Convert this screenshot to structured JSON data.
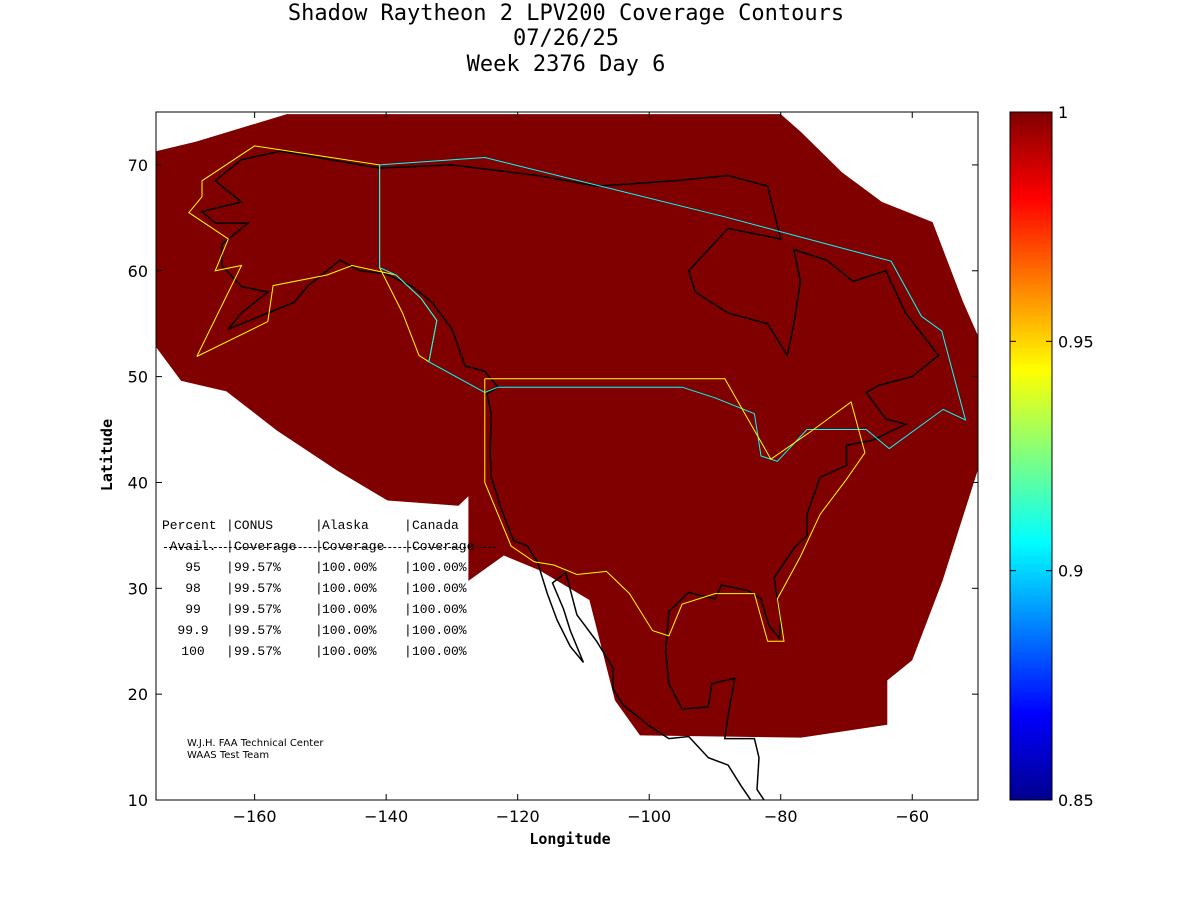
{
  "title": {
    "line1": "Shadow Raytheon 2 LPV200 Coverage Contours",
    "line2": "07/26/25",
    "line3": "Week 2376 Day 6"
  },
  "chart_data": {
    "type": "heatmap",
    "xlabel": "Longitude",
    "ylabel": "Latitude",
    "xlim": [
      -175,
      -50
    ],
    "ylim": [
      10,
      75
    ],
    "xticks": [
      -160,
      -140,
      -120,
      -100,
      -80,
      -60
    ],
    "yticks": [
      10,
      20,
      30,
      40,
      50,
      60,
      70
    ],
    "colorbar": {
      "range": [
        0.85,
        1
      ],
      "ticks": [
        "1",
        "0.95",
        "0.9",
        "0.85"
      ],
      "colormap": "jet"
    },
    "coverage_value": 1,
    "coverage_color": "#800000",
    "coverage_region": [
      [
        -175.6,
        71.2
      ],
      [
        -175.6,
        53.3
      ],
      [
        -171.2,
        49.6
      ],
      [
        -164.3,
        48.6
      ],
      [
        -156.6,
        44.9
      ],
      [
        -147.4,
        41.1
      ],
      [
        -139.8,
        38.3
      ],
      [
        -129.0,
        37.8
      ],
      [
        -127.5,
        38.7
      ],
      [
        -127.5,
        30.7
      ],
      [
        -122.1,
        33.1
      ],
      [
        -116.7,
        31.7
      ],
      [
        -109.1,
        28.9
      ],
      [
        -105.2,
        19.4
      ],
      [
        -101.4,
        16.1
      ],
      [
        -76.9,
        15.9
      ],
      [
        -63.8,
        17.1
      ],
      [
        -63.8,
        21.3
      ],
      [
        -60.0,
        23.2
      ],
      [
        -55.4,
        30.7
      ],
      [
        -49.6,
        42.0
      ],
      [
        -49.6,
        53.3
      ],
      [
        -52.3,
        57.1
      ],
      [
        -56.9,
        64.6
      ],
      [
        -64.6,
        66.5
      ],
      [
        -70.7,
        69.3
      ],
      [
        -76.9,
        73.1
      ],
      [
        -80.0,
        74.8
      ],
      [
        -155.1,
        74.8
      ],
      [
        -168.9,
        72.2
      ]
    ],
    "boundaries": {
      "alaska": {
        "color": "#ffff00",
        "points": [
          [
            -168.8,
            51.9
          ],
          [
            -158.0,
            55.2
          ],
          [
            -157.2,
            58.6
          ],
          [
            -149.0,
            59.6
          ],
          [
            -145.2,
            60.5
          ],
          [
            -138.5,
            59.6
          ],
          [
            -134.7,
            57.4
          ],
          [
            -132.3,
            55.3
          ],
          [
            -133.5,
            51.4
          ],
          [
            -135.0,
            52.0
          ],
          [
            -137.5,
            56.0
          ],
          [
            -141.0,
            60.3
          ],
          [
            -141.0,
            70.0
          ],
          [
            -160.0,
            71.8
          ],
          [
            -168.0,
            68.5
          ],
          [
            -168.0,
            67.0
          ],
          [
            -170.0,
            65.5
          ],
          [
            -164.0,
            63.0
          ],
          [
            -166.0,
            60.0
          ],
          [
            -162.0,
            60.5
          ],
          [
            -168.8,
            51.9
          ]
        ]
      },
      "canada": {
        "color": "#00ffff",
        "points": [
          [
            -141.0,
            70.0
          ],
          [
            -125.0,
            70.7
          ],
          [
            -88.5,
            65.1
          ],
          [
            -63.2,
            60.9
          ],
          [
            -58.6,
            55.7
          ],
          [
            -55.5,
            54.3
          ],
          [
            -51.9,
            45.9
          ],
          [
            -55.3,
            46.9
          ],
          [
            -63.5,
            43.2
          ],
          [
            -67.0,
            45.0
          ],
          [
            -72.0,
            45.0
          ],
          [
            -76.0,
            45.0
          ],
          [
            -80.5,
            42.0
          ],
          [
            -83.0,
            42.5
          ],
          [
            -84.0,
            46.5
          ],
          [
            -90.0,
            48.0
          ],
          [
            -95.0,
            49.0
          ],
          [
            -123.0,
            49.0
          ],
          [
            -125.0,
            48.5
          ],
          [
            -133.5,
            51.4
          ],
          [
            -132.3,
            55.3
          ],
          [
            -134.7,
            57.4
          ],
          [
            -138.5,
            59.6
          ],
          [
            -141.0,
            60.3
          ],
          [
            -141.0,
            70.0
          ]
        ]
      },
      "conus": {
        "color": "#ffff00",
        "points": [
          [
            -125.0,
            49.8
          ],
          [
            -88.5,
            49.8
          ],
          [
            -81.5,
            42.2
          ],
          [
            -75.0,
            45.0
          ],
          [
            -69.3,
            47.6
          ],
          [
            -67.2,
            42.8
          ],
          [
            -70.0,
            40.3
          ],
          [
            -74.0,
            37.0
          ],
          [
            -77.0,
            33.0
          ],
          [
            -80.5,
            29.0
          ],
          [
            -79.5,
            25.0
          ],
          [
            -82.0,
            25.0
          ],
          [
            -84.0,
            29.5
          ],
          [
            -90.0,
            29.5
          ],
          [
            -95.0,
            28.5
          ],
          [
            -97.0,
            25.5
          ],
          [
            -99.5,
            26.0
          ],
          [
            -103.0,
            29.5
          ],
          [
            -106.5,
            31.6
          ],
          [
            -111.0,
            31.3
          ],
          [
            -114.5,
            32.2
          ],
          [
            -117.5,
            32.5
          ],
          [
            -121.0,
            34.0
          ],
          [
            -125.0,
            40.0
          ],
          [
            -125.0,
            49.8
          ]
        ]
      }
    },
    "coastline": [
      [
        -166,
        68.5
      ],
      [
        -162,
        70.5
      ],
      [
        -156,
        71.3
      ],
      [
        -141,
        69.7
      ],
      [
        -130,
        70
      ],
      [
        -117,
        69
      ],
      [
        -108,
        68
      ],
      [
        -96,
        68.5
      ],
      [
        -88,
        69
      ],
      [
        -82,
        68
      ],
      [
        -80,
        63
      ],
      [
        -88,
        64
      ],
      [
        -94,
        60
      ],
      [
        -93,
        58
      ],
      [
        -88,
        56
      ],
      [
        -82,
        55
      ],
      [
        -79,
        52
      ],
      [
        -78,
        55
      ],
      [
        -77,
        59
      ],
      [
        -78,
        62
      ],
      [
        -73,
        61
      ],
      [
        -69,
        59
      ],
      [
        -64,
        60
      ],
      [
        -61,
        56
      ],
      [
        -56,
        52
      ],
      [
        -60,
        50
      ],
      [
        -65,
        49.2
      ],
      [
        -67,
        48.5
      ],
      [
        -64,
        46
      ],
      [
        -61,
        45.5
      ],
      [
        -66,
        44
      ],
      [
        -70,
        43.5
      ],
      [
        -70,
        41.6
      ],
      [
        -74,
        40.5
      ],
      [
        -76,
        37
      ],
      [
        -76,
        35
      ],
      [
        -78,
        33.8
      ],
      [
        -81,
        31
      ],
      [
        -80,
        27
      ],
      [
        -80.2,
        25.3
      ],
      [
        -81.8,
        26.5
      ],
      [
        -83,
        29
      ],
      [
        -85,
        29.8
      ],
      [
        -89,
        30.3
      ],
      [
        -90,
        29
      ],
      [
        -94,
        29.6
      ],
      [
        -97,
        27.8
      ],
      [
        -97.5,
        24
      ],
      [
        -97,
        21
      ],
      [
        -95,
        18.6
      ],
      [
        -91,
        18.8
      ],
      [
        -90.5,
        21
      ],
      [
        -87,
        21.5
      ],
      [
        -88,
        18
      ],
      [
        -88.5,
        15.8
      ],
      [
        -84,
        15.8
      ],
      [
        -83.3,
        14
      ],
      [
        -83.6,
        11
      ],
      [
        -81.5,
        9
      ],
      [
        -79.5,
        9.5
      ],
      [
        -77.5,
        8.5
      ]
    ],
    "coastline_west": [
      [
        -77.5,
        7.8
      ],
      [
        -80,
        7.5
      ],
      [
        -84,
        9.5
      ],
      [
        -86,
        11.3
      ],
      [
        -88,
        13.3
      ],
      [
        -91,
        14
      ],
      [
        -94,
        16
      ],
      [
        -97,
        15.8
      ],
      [
        -100,
        17
      ],
      [
        -104,
        19
      ],
      [
        -105.5,
        20.5
      ],
      [
        -105.5,
        22.5
      ],
      [
        -108,
        25
      ],
      [
        -111,
        27.5
      ],
      [
        -112.7,
        31.5
      ],
      [
        -114.7,
        30.5
      ],
      [
        -113,
        28
      ],
      [
        -112,
        26
      ],
      [
        -110,
        23
      ],
      [
        -112,
        24.5
      ],
      [
        -114,
        27
      ],
      [
        -115.5,
        29.5
      ],
      [
        -117,
        32.5
      ],
      [
        -118.5,
        34
      ],
      [
        -120.6,
        34.5
      ],
      [
        -122.5,
        37.5
      ],
      [
        -124,
        40.5
      ],
      [
        -124.2,
        43
      ],
      [
        -124,
        46.5
      ],
      [
        -124.7,
        48.4
      ],
      [
        -123,
        49
      ],
      [
        -125,
        50.5
      ],
      [
        -128,
        51
      ],
      [
        -130,
        54.5
      ],
      [
        -133,
        57
      ],
      [
        -136,
        58.5
      ],
      [
        -140,
        59.7
      ],
      [
        -144,
        60
      ],
      [
        -147,
        61
      ],
      [
        -150,
        59.5
      ],
      [
        -152,
        58.5
      ],
      [
        -154,
        57
      ],
      [
        -158,
        56
      ],
      [
        -162,
        55
      ],
      [
        -164,
        54.5
      ],
      [
        -162,
        56
      ],
      [
        -158,
        58
      ],
      [
        -162,
        58.5
      ],
      [
        -165,
        60.5
      ],
      [
        -165,
        62.5
      ],
      [
        -161,
        64.5
      ],
      [
        -166,
        64.5
      ],
      [
        -168,
        65.6
      ],
      [
        -162,
        66.5
      ],
      [
        -166,
        68.5
      ]
    ],
    "table": {
      "header1": [
        "Percent",
        "CONUS",
        "Alaska",
        "Canada"
      ],
      "header2": [
        "Avail.",
        "Coverage",
        "Coverage",
        "Coverage"
      ],
      "rows": [
        [
          "95",
          "99.57%",
          "100.00%",
          "100.00%"
        ],
        [
          "98",
          "99.57%",
          "100.00%",
          "100.00%"
        ],
        [
          "99",
          "99.57%",
          "100.00%",
          "100.00%"
        ],
        [
          "99.9",
          "99.57%",
          "100.00%",
          "100.00%"
        ],
        [
          "100",
          "99.57%",
          "100.00%",
          "100.00%"
        ]
      ]
    },
    "credit": [
      "W.J.H. FAA Technical Center",
      "WAAS Test Team"
    ]
  }
}
